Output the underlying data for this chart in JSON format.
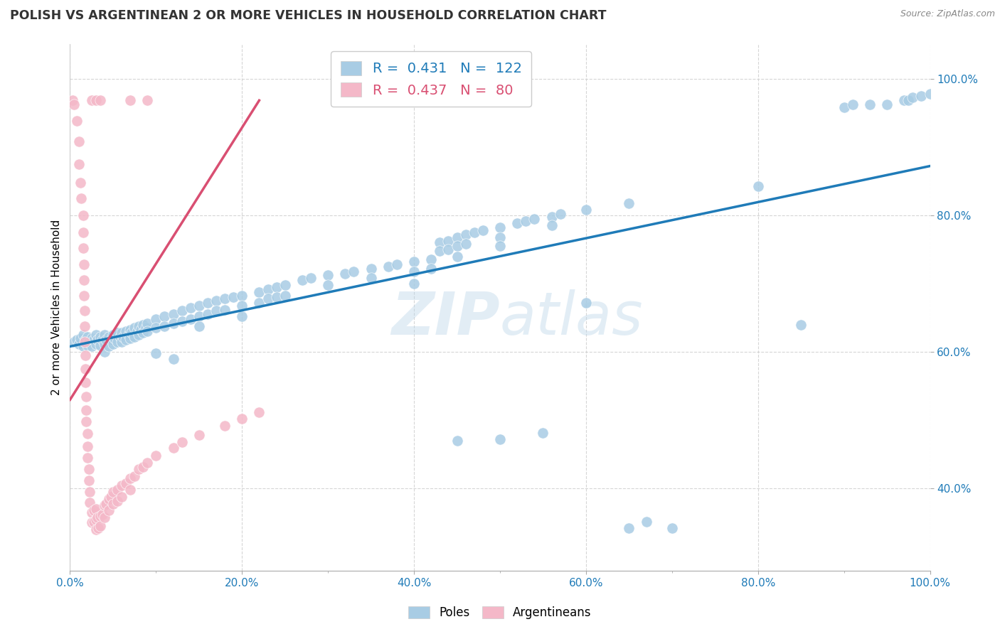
{
  "title": "POLISH VS ARGENTINEAN 2 OR MORE VEHICLES IN HOUSEHOLD CORRELATION CHART",
  "source": "Source: ZipAtlas.com",
  "ylabel": "2 or more Vehicles in Household",
  "xlim": [
    0.0,
    1.0
  ],
  "ylim": [
    0.28,
    1.05
  ],
  "legend_blue_R": "0.431",
  "legend_blue_N": "122",
  "legend_pink_R": "0.437",
  "legend_pink_N": "80",
  "watermark": "ZIPatlas",
  "blue_color": "#a8cce4",
  "pink_color": "#f4b8c8",
  "blue_line_color": "#1f7bb8",
  "pink_line_color": "#d94f72",
  "background_color": "#ffffff",
  "grid_color": "#cccccc",
  "poles_scatter": [
    [
      0.005,
      0.615
    ],
    [
      0.008,
      0.618
    ],
    [
      0.01,
      0.612
    ],
    [
      0.012,
      0.62
    ],
    [
      0.015,
      0.608
    ],
    [
      0.015,
      0.625
    ],
    [
      0.018,
      0.618
    ],
    [
      0.02,
      0.622
    ],
    [
      0.02,
      0.61
    ],
    [
      0.022,
      0.615
    ],
    [
      0.025,
      0.62
    ],
    [
      0.025,
      0.608
    ],
    [
      0.028,
      0.618
    ],
    [
      0.03,
      0.625
    ],
    [
      0.03,
      0.612
    ],
    [
      0.032,
      0.618
    ],
    [
      0.035,
      0.622
    ],
    [
      0.035,
      0.61
    ],
    [
      0.038,
      0.618
    ],
    [
      0.04,
      0.625
    ],
    [
      0.04,
      0.612
    ],
    [
      0.04,
      0.6
    ],
    [
      0.042,
      0.618
    ],
    [
      0.045,
      0.622
    ],
    [
      0.045,
      0.608
    ],
    [
      0.048,
      0.618
    ],
    [
      0.05,
      0.625
    ],
    [
      0.05,
      0.612
    ],
    [
      0.052,
      0.62
    ],
    [
      0.055,
      0.628
    ],
    [
      0.055,
      0.615
    ],
    [
      0.058,
      0.622
    ],
    [
      0.06,
      0.628
    ],
    [
      0.06,
      0.615
    ],
    [
      0.062,
      0.622
    ],
    [
      0.065,
      0.63
    ],
    [
      0.065,
      0.618
    ],
    [
      0.068,
      0.625
    ],
    [
      0.07,
      0.632
    ],
    [
      0.07,
      0.62
    ],
    [
      0.072,
      0.628
    ],
    [
      0.075,
      0.635
    ],
    [
      0.075,
      0.622
    ],
    [
      0.078,
      0.63
    ],
    [
      0.08,
      0.638
    ],
    [
      0.08,
      0.625
    ],
    [
      0.082,
      0.632
    ],
    [
      0.085,
      0.64
    ],
    [
      0.085,
      0.628
    ],
    [
      0.088,
      0.635
    ],
    [
      0.09,
      0.642
    ],
    [
      0.09,
      0.63
    ],
    [
      0.1,
      0.648
    ],
    [
      0.1,
      0.635
    ],
    [
      0.1,
      0.598
    ],
    [
      0.11,
      0.652
    ],
    [
      0.11,
      0.638
    ],
    [
      0.12,
      0.655
    ],
    [
      0.12,
      0.642
    ],
    [
      0.12,
      0.59
    ],
    [
      0.13,
      0.66
    ],
    [
      0.13,
      0.645
    ],
    [
      0.14,
      0.665
    ],
    [
      0.14,
      0.648
    ],
    [
      0.15,
      0.668
    ],
    [
      0.15,
      0.652
    ],
    [
      0.15,
      0.638
    ],
    [
      0.16,
      0.672
    ],
    [
      0.16,
      0.655
    ],
    [
      0.17,
      0.675
    ],
    [
      0.17,
      0.66
    ],
    [
      0.18,
      0.678
    ],
    [
      0.18,
      0.662
    ],
    [
      0.19,
      0.68
    ],
    [
      0.2,
      0.682
    ],
    [
      0.2,
      0.668
    ],
    [
      0.2,
      0.652
    ],
    [
      0.22,
      0.688
    ],
    [
      0.22,
      0.672
    ],
    [
      0.23,
      0.692
    ],
    [
      0.23,
      0.678
    ],
    [
      0.24,
      0.695
    ],
    [
      0.24,
      0.68
    ],
    [
      0.25,
      0.698
    ],
    [
      0.25,
      0.682
    ],
    [
      0.27,
      0.705
    ],
    [
      0.28,
      0.708
    ],
    [
      0.3,
      0.712
    ],
    [
      0.3,
      0.698
    ],
    [
      0.32,
      0.715
    ],
    [
      0.33,
      0.718
    ],
    [
      0.35,
      0.722
    ],
    [
      0.35,
      0.708
    ],
    [
      0.37,
      0.725
    ],
    [
      0.38,
      0.728
    ],
    [
      0.4,
      0.732
    ],
    [
      0.4,
      0.718
    ],
    [
      0.4,
      0.7
    ],
    [
      0.42,
      0.735
    ],
    [
      0.42,
      0.722
    ],
    [
      0.43,
      0.76
    ],
    [
      0.43,
      0.748
    ],
    [
      0.44,
      0.762
    ],
    [
      0.44,
      0.75
    ],
    [
      0.45,
      0.768
    ],
    [
      0.45,
      0.755
    ],
    [
      0.45,
      0.74
    ],
    [
      0.46,
      0.772
    ],
    [
      0.46,
      0.758
    ],
    [
      0.47,
      0.775
    ],
    [
      0.48,
      0.778
    ],
    [
      0.5,
      0.782
    ],
    [
      0.5,
      0.768
    ],
    [
      0.5,
      0.755
    ],
    [
      0.52,
      0.788
    ],
    [
      0.53,
      0.792
    ],
    [
      0.54,
      0.795
    ],
    [
      0.55,
      0.482
    ],
    [
      0.56,
      0.798
    ],
    [
      0.56,
      0.785
    ],
    [
      0.57,
      0.802
    ],
    [
      0.6,
      0.808
    ],
    [
      0.6,
      0.672
    ],
    [
      0.65,
      0.818
    ],
    [
      0.65,
      0.342
    ],
    [
      0.67,
      0.352
    ],
    [
      0.7,
      0.342
    ],
    [
      0.8,
      0.842
    ],
    [
      0.85,
      0.64
    ],
    [
      0.9,
      0.958
    ],
    [
      0.91,
      0.962
    ],
    [
      0.93,
      0.962
    ],
    [
      0.95,
      0.962
    ],
    [
      0.97,
      0.968
    ],
    [
      0.975,
      0.968
    ],
    [
      0.98,
      0.972
    ],
    [
      0.99,
      0.975
    ],
    [
      1.0,
      0.978
    ],
    [
      0.45,
      0.47
    ],
    [
      0.5,
      0.472
    ]
  ],
  "argentineans_scatter": [
    [
      0.003,
      0.968
    ],
    [
      0.005,
      0.962
    ],
    [
      0.008,
      0.938
    ],
    [
      0.01,
      0.908
    ],
    [
      0.01,
      0.875
    ],
    [
      0.012,
      0.848
    ],
    [
      0.013,
      0.825
    ],
    [
      0.015,
      0.8
    ],
    [
      0.015,
      0.775
    ],
    [
      0.015,
      0.752
    ],
    [
      0.016,
      0.728
    ],
    [
      0.016,
      0.705
    ],
    [
      0.016,
      0.682
    ],
    [
      0.017,
      0.66
    ],
    [
      0.017,
      0.638
    ],
    [
      0.017,
      0.615
    ],
    [
      0.018,
      0.595
    ],
    [
      0.018,
      0.575
    ],
    [
      0.018,
      0.555
    ],
    [
      0.019,
      0.535
    ],
    [
      0.019,
      0.515
    ],
    [
      0.019,
      0.498
    ],
    [
      0.02,
      0.48
    ],
    [
      0.02,
      0.462
    ],
    [
      0.02,
      0.445
    ],
    [
      0.022,
      0.428
    ],
    [
      0.022,
      0.412
    ],
    [
      0.023,
      0.395
    ],
    [
      0.023,
      0.38
    ],
    [
      0.025,
      0.365
    ],
    [
      0.025,
      0.35
    ],
    [
      0.028,
      0.368
    ],
    [
      0.028,
      0.352
    ],
    [
      0.03,
      0.37
    ],
    [
      0.03,
      0.355
    ],
    [
      0.03,
      0.34
    ],
    [
      0.032,
      0.358
    ],
    [
      0.033,
      0.342
    ],
    [
      0.035,
      0.36
    ],
    [
      0.035,
      0.345
    ],
    [
      0.038,
      0.362
    ],
    [
      0.04,
      0.375
    ],
    [
      0.04,
      0.358
    ],
    [
      0.042,
      0.378
    ],
    [
      0.045,
      0.385
    ],
    [
      0.045,
      0.368
    ],
    [
      0.048,
      0.388
    ],
    [
      0.05,
      0.395
    ],
    [
      0.05,
      0.378
    ],
    [
      0.055,
      0.398
    ],
    [
      0.055,
      0.382
    ],
    [
      0.06,
      0.405
    ],
    [
      0.06,
      0.388
    ],
    [
      0.065,
      0.408
    ],
    [
      0.07,
      0.415
    ],
    [
      0.07,
      0.398
    ],
    [
      0.075,
      0.418
    ],
    [
      0.08,
      0.428
    ],
    [
      0.085,
      0.432
    ],
    [
      0.09,
      0.438
    ],
    [
      0.1,
      0.448
    ],
    [
      0.12,
      0.46
    ],
    [
      0.13,
      0.468
    ],
    [
      0.15,
      0.478
    ],
    [
      0.18,
      0.492
    ],
    [
      0.2,
      0.502
    ],
    [
      0.22,
      0.512
    ],
    [
      0.025,
      0.968
    ],
    [
      0.03,
      0.968
    ],
    [
      0.035,
      0.968
    ],
    [
      0.07,
      0.968
    ],
    [
      0.09,
      0.968
    ]
  ],
  "blue_trendline_x": [
    0.0,
    1.0
  ],
  "blue_trendline_y": [
    0.608,
    0.872
  ],
  "pink_trendline_x": [
    0.0,
    0.22
  ],
  "pink_trendline_y": [
    0.53,
    0.968
  ]
}
